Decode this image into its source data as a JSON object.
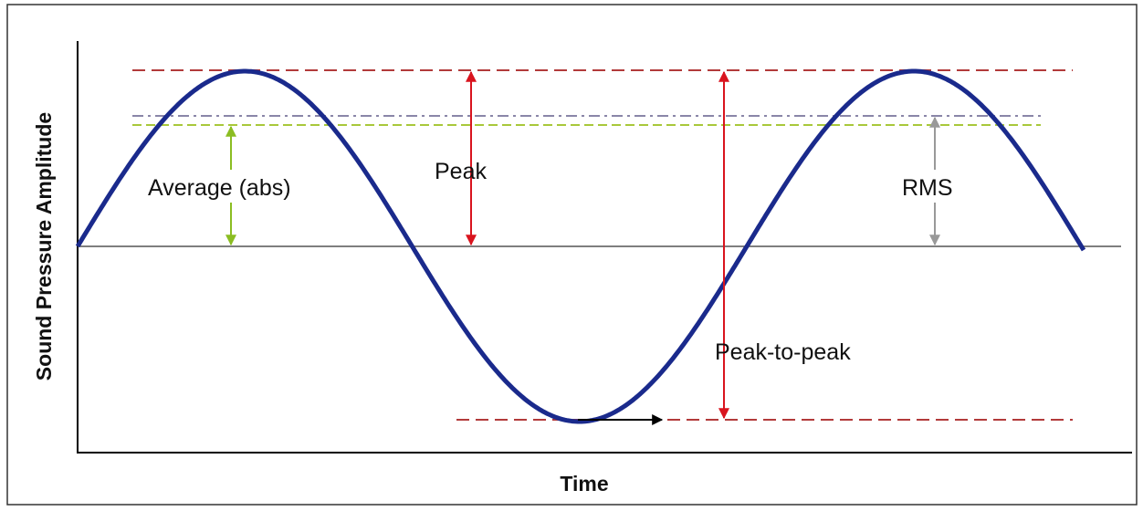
{
  "axes": {
    "y_label": "Sound Pressure Amplitude",
    "x_label": "Time"
  },
  "annotations": {
    "average": "Average (abs)",
    "peak": "Peak",
    "rms": "RMS",
    "peak_to_peak": "Peak-to-peak"
  }
}
